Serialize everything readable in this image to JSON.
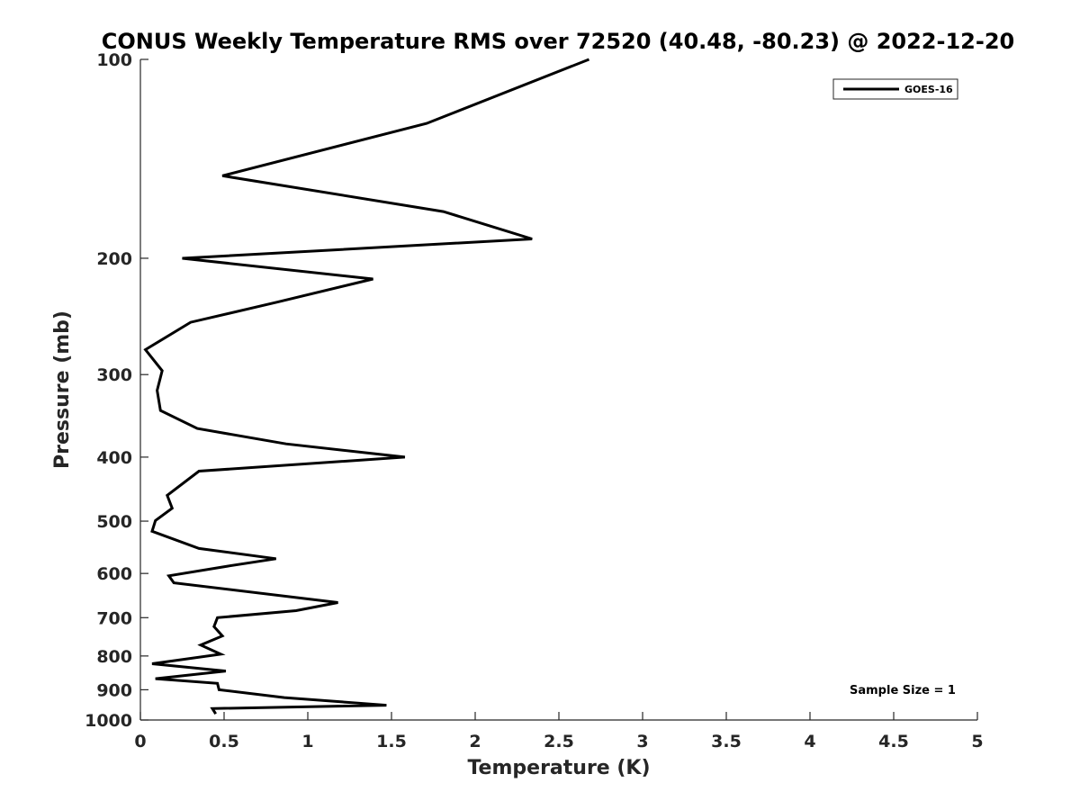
{
  "chart_data": {
    "type": "line",
    "title": "CONUS Weekly Temperature RMS over 72520 (40.48, -80.23) @ 2022-12-20",
    "xlabel": "Temperature (K)",
    "ylabel": "Pressure (mb)",
    "xlim": [
      0,
      5
    ],
    "ylim": [
      100,
      1000
    ],
    "y_scale": "log",
    "y_reversed": true,
    "x_ticks": [
      0,
      0.5,
      1,
      1.5,
      2,
      2.5,
      3,
      3.5,
      4,
      4.5,
      5
    ],
    "x_tick_labels": [
      "0",
      "0.5",
      "1",
      "1.5",
      "2",
      "2.5",
      "3",
      "3.5",
      "4",
      "4.5",
      "5"
    ],
    "y_ticks": [
      100,
      200,
      300,
      400,
      500,
      600,
      700,
      800,
      900,
      1000
    ],
    "y_tick_labels": [
      "100",
      "200",
      "300",
      "400",
      "500",
      "600",
      "700",
      "800",
      "900",
      "1000"
    ],
    "grid": false,
    "legend_position": "top-right",
    "series": [
      {
        "name": "GOES-16",
        "color": "#000000",
        "points": [
          [
            2.68,
            100
          ],
          [
            1.71,
            125
          ],
          [
            0.49,
            150
          ],
          [
            1.81,
            170
          ],
          [
            2.34,
            187
          ],
          [
            0.25,
            200
          ],
          [
            1.39,
            215
          ],
          [
            0.82,
            233
          ],
          [
            0.3,
            250
          ],
          [
            0.03,
            275
          ],
          [
            0.13,
            296
          ],
          [
            0.1,
            317
          ],
          [
            0.12,
            340
          ],
          [
            0.34,
            362
          ],
          [
            0.87,
            382
          ],
          [
            1.58,
            400
          ],
          [
            0.35,
            420
          ],
          [
            0.16,
            457
          ],
          [
            0.19,
            478
          ],
          [
            0.09,
            499
          ],
          [
            0.07,
            518
          ],
          [
            0.35,
            550
          ],
          [
            0.81,
            570
          ],
          [
            0.52,
            585
          ],
          [
            0.17,
            605
          ],
          [
            0.2,
            620
          ],
          [
            1.18,
            664
          ],
          [
            0.93,
            683
          ],
          [
            0.46,
            700
          ],
          [
            0.44,
            722
          ],
          [
            0.49,
            746
          ],
          [
            0.36,
            770
          ],
          [
            0.48,
            795
          ],
          [
            0.07,
            822
          ],
          [
            0.51,
            843
          ],
          [
            0.09,
            866
          ],
          [
            0.46,
            880
          ],
          [
            0.47,
            900
          ],
          [
            0.86,
            925
          ],
          [
            1.47,
            950
          ],
          [
            0.43,
            961
          ],
          [
            0.45,
            979
          ]
        ]
      }
    ],
    "annotation": "Sample Size = 1"
  }
}
